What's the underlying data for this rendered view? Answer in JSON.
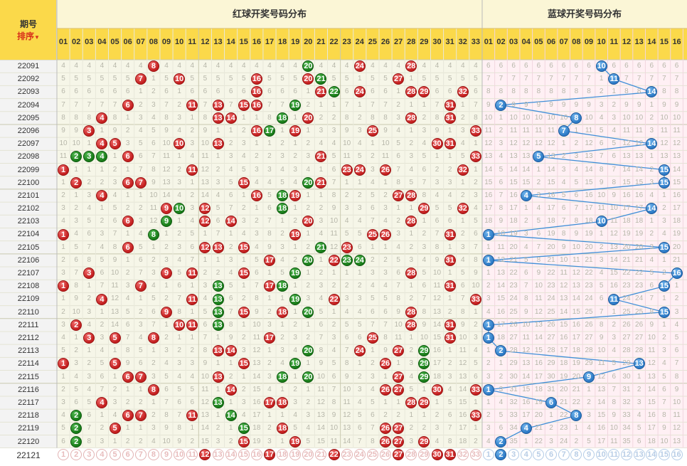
{
  "header": {
    "issue_label": "期号",
    "sort_label": "排序",
    "sort_arrow": "▼",
    "red_title": "红球开奖号码分布",
    "blue_title": "蓝球开奖号码分布",
    "red_cols": [
      "01",
      "02",
      "03",
      "04",
      "05",
      "06",
      "07",
      "08",
      "09",
      "10",
      "11",
      "12",
      "13",
      "14",
      "15",
      "16",
      "17",
      "18",
      "19",
      "20",
      "21",
      "22",
      "23",
      "24",
      "25",
      "26",
      "27",
      "28",
      "29",
      "30",
      "31",
      "32",
      "33"
    ],
    "blue_cols": [
      "01",
      "02",
      "03",
      "04",
      "05",
      "06",
      "07",
      "08",
      "09",
      "10",
      "11",
      "12",
      "13",
      "14",
      "15",
      "16"
    ]
  },
  "colors": {
    "red": "#c21d1d",
    "green": "#177a17",
    "blue": "#2b79c5",
    "line": "#3f8fd8",
    "header_bg": "#fbd94a",
    "red_area": "#f6f6e8",
    "blue_area": "#fff0f4"
  },
  "rows": [
    {
      "issue": "22091",
      "red": [
        8,
        20,
        24,
        28
      ],
      "green": [
        20
      ],
      "blue": 10
    },
    {
      "issue": "22092",
      "red": [
        7,
        10,
        16,
        20,
        21,
        27
      ],
      "green": [
        21
      ],
      "blue": 11
    },
    {
      "issue": "22093",
      "red": [
        16,
        21,
        22,
        24,
        28,
        29,
        32
      ],
      "green": [
        22
      ],
      "blue": 14
    },
    {
      "issue": "22094",
      "red": [
        6,
        11,
        13,
        15,
        16,
        19,
        31
      ],
      "green": [
        19
      ],
      "blue": 2
    },
    {
      "issue": "22095",
      "red": [
        4,
        13,
        14,
        18,
        20,
        28,
        31
      ],
      "green": [
        18
      ],
      "blue": 8
    },
    {
      "issue": "22096",
      "red": [
        3,
        16,
        17,
        19,
        25,
        33
      ],
      "green": [
        17
      ],
      "blue": 7
    },
    {
      "issue": "22097",
      "red": [
        4,
        5,
        10,
        13,
        30,
        31
      ],
      "green": [],
      "blue": 14
    },
    {
      "issue": "22098",
      "red": [
        2,
        3,
        4,
        6,
        21,
        33
      ],
      "green": [
        2,
        3,
        4
      ],
      "blue": 5
    },
    {
      "issue": "22099",
      "red": [
        1,
        11,
        23,
        24,
        26,
        32
      ],
      "green": [],
      "blue": 15
    },
    {
      "issue": "22100",
      "red": [
        2,
        6,
        7,
        15,
        20,
        21
      ],
      "green": [
        20
      ],
      "blue": 15
    },
    {
      "issue": "22101",
      "red": [
        4,
        16,
        18,
        19,
        27,
        28
      ],
      "green": [
        18
      ],
      "blue": 4
    },
    {
      "issue": "22102",
      "red": [
        9,
        10,
        12,
        18,
        29,
        32
      ],
      "green": [
        10,
        18
      ],
      "blue": 14
    },
    {
      "issue": "22103",
      "red": [
        6,
        9,
        12,
        14,
        20,
        28
      ],
      "green": [
        9
      ],
      "blue": 10
    },
    {
      "issue": "22104",
      "red": [
        1,
        8,
        19,
        25,
        26,
        31
      ],
      "green": [
        8
      ],
      "blue": 1
    },
    {
      "issue": "22105",
      "red": [
        6,
        12,
        13,
        15,
        21,
        23
      ],
      "green": [
        21
      ],
      "blue": 15
    },
    {
      "issue": "22106",
      "red": [
        17,
        20,
        22,
        23,
        24,
        31
      ],
      "green": [
        20,
        23,
        24
      ],
      "blue": 1
    },
    {
      "issue": "22107",
      "red": [
        3,
        9,
        11,
        15,
        19,
        28
      ],
      "green": [
        19
      ],
      "blue": 16
    },
    {
      "issue": "22108",
      "red": [
        1,
        7,
        13,
        17,
        18,
        31
      ],
      "green": [
        13,
        18
      ],
      "blue": 15
    },
    {
      "issue": "22109",
      "red": [
        4,
        11,
        13,
        19,
        22,
        33
      ],
      "green": [
        13,
        19
      ],
      "blue": 11
    },
    {
      "issue": "22110",
      "red": [
        9,
        13,
        15,
        18,
        20,
        28
      ],
      "green": [
        13,
        20
      ],
      "blue": 15
    },
    {
      "issue": "22111",
      "red": [
        2,
        10,
        11,
        13,
        28,
        31
      ],
      "green": [
        13
      ],
      "blue": 1
    },
    {
      "issue": "22112",
      "red": [
        3,
        5,
        8,
        17,
        25,
        31
      ],
      "green": [],
      "blue": 1
    },
    {
      "issue": "22113",
      "red": [
        13,
        14,
        20,
        24,
        27,
        29
      ],
      "green": [
        20,
        29
      ],
      "blue": 2
    },
    {
      "issue": "22114",
      "red": [
        1,
        5,
        15,
        19,
        26,
        29
      ],
      "green": [
        19,
        29
      ],
      "blue": 13
    },
    {
      "issue": "22115",
      "red": [
        6,
        7,
        13,
        18,
        20,
        27,
        29
      ],
      "green": [
        18,
        20,
        29
      ],
      "blue": 9
    },
    {
      "issue": "22116",
      "red": [
        8,
        14,
        26,
        27,
        30,
        33
      ],
      "green": [],
      "blue": 1
    },
    {
      "issue": "22117",
      "red": [
        4,
        13,
        17,
        18,
        28,
        29
      ],
      "green": [
        13
      ],
      "blue": 6
    },
    {
      "issue": "22118",
      "red": [
        2,
        6,
        7,
        11,
        14,
        33
      ],
      "green": [
        2,
        14
      ],
      "blue": 8
    },
    {
      "issue": "22119",
      "red": [
        2,
        5,
        15,
        18,
        26,
        27
      ],
      "green": [
        2,
        15
      ],
      "blue": 4
    },
    {
      "issue": "22120",
      "red": [
        2,
        15,
        19,
        26,
        27,
        29
      ],
      "green": [
        2
      ],
      "blue": 2
    }
  ],
  "predict": {
    "issue": "22121",
    "red": [
      12,
      17,
      22,
      27,
      30,
      31
    ],
    "blue": 2
  }
}
